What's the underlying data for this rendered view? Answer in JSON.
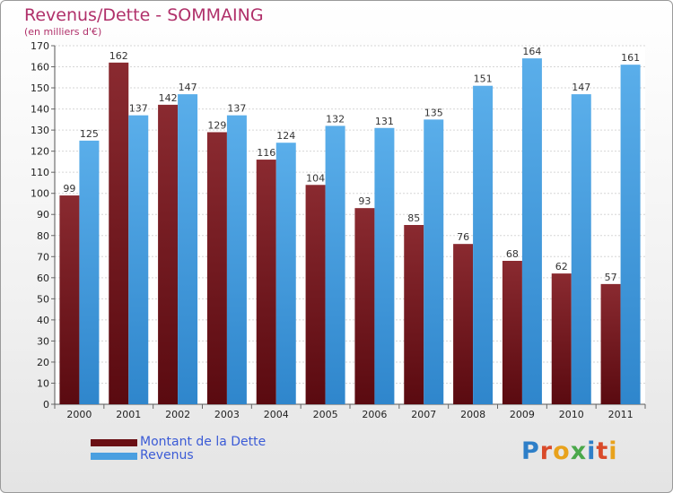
{
  "header": {
    "title": "Revenus/Dette - SOMMAING",
    "subtitle": "(en milliers d'€)"
  },
  "chart_data": {
    "type": "bar",
    "categories": [
      "2000",
      "2001",
      "2002",
      "2003",
      "2004",
      "2005",
      "2006",
      "2007",
      "2008",
      "2009",
      "2010",
      "2011"
    ],
    "series": [
      {
        "name": "Montant de la Dette",
        "color": "#7a1f25",
        "values": [
          99,
          162,
          142,
          129,
          116,
          104,
          93,
          85,
          76,
          68,
          62,
          57
        ]
      },
      {
        "name": "Revenus",
        "color": "#4aa0e0",
        "values": [
          125,
          137,
          147,
          137,
          124,
          132,
          131,
          135,
          151,
          164,
          147,
          161
        ]
      }
    ],
    "ylim": [
      0,
      170
    ],
    "ytick_step": 10,
    "grid": true,
    "legend_position": "bottom-left"
  },
  "legend": {
    "items": [
      {
        "label": "Montant de la Dette",
        "color": "#6a0f14"
      },
      {
        "label": "Revenus",
        "color": "#4a9fe0"
      }
    ]
  },
  "logo": {
    "letters": [
      "P",
      "r",
      "o",
      "x",
      "i",
      "t",
      "i"
    ],
    "colors": [
      "#2e7fc8",
      "#d94a2a",
      "#e8a21c",
      "#4aa84a",
      "#2e7fc8",
      "#d94a2a",
      "#e8a21c"
    ]
  }
}
